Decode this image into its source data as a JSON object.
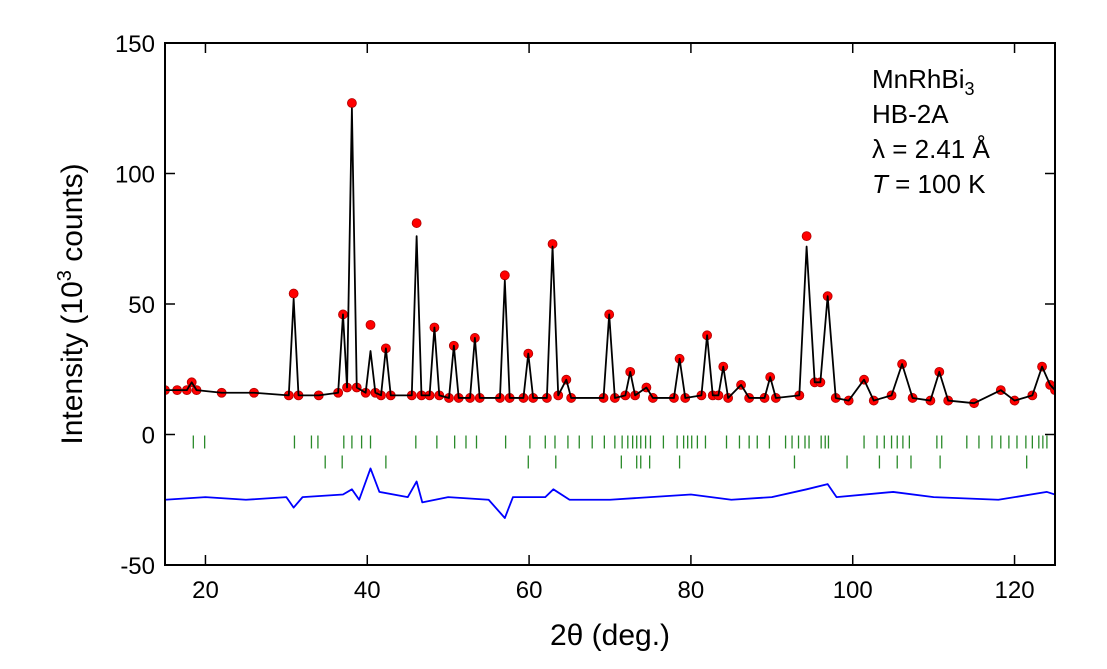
{
  "chart_data": {
    "type": "line",
    "xlabel": "2θ (deg.)",
    "ylabel": [
      "Intensity (10",
      "3",
      " counts)"
    ],
    "annotations": [
      {
        "text": "MnRhBi",
        "sub": "3"
      },
      {
        "text": "HB-2A"
      },
      {
        "text": "λ = 2.41 Å"
      },
      {
        "italic": "T",
        "text": " = 100 K"
      }
    ],
    "xlim": [
      15,
      125
    ],
    "ylim": [
      -50,
      150
    ],
    "xticks": [
      20,
      40,
      60,
      80,
      100,
      120
    ],
    "yticks": [
      -50,
      0,
      50,
      100,
      150
    ],
    "x": [
      15,
      16.5,
      17.7,
      18.3,
      18.9,
      22,
      26,
      30.3,
      30.9,
      31.5,
      34,
      36.4,
      37.0,
      37.5,
      38.1,
      38.7,
      39.8,
      40.4,
      41.0,
      41.7,
      42.3,
      42.9,
      45.5,
      46.1,
      46.7,
      47.7,
      48.3,
      48.9,
      50.1,
      50.7,
      51.3,
      52.7,
      53.3,
      53.9,
      56.4,
      57.0,
      57.6,
      59.3,
      59.9,
      60.5,
      62.2,
      62.9,
      63.6,
      64.6,
      65.2,
      69.2,
      69.9,
      70.6,
      71.9,
      72.5,
      73.1,
      74.5,
      75.3,
      77.9,
      78.6,
      79.3,
      81.3,
      82.0,
      82.7,
      83.4,
      84.0,
      84.6,
      86.2,
      87.2,
      89.1,
      89.8,
      90.5,
      93.4,
      94.3,
      95.3,
      96.0,
      96.9,
      97.9,
      99.5,
      101.4,
      102.6,
      104.8,
      106.1,
      107.4,
      109.6,
      110.7,
      111.8,
      115,
      118.3,
      120,
      122.2,
      123.4,
      124.4,
      125
    ],
    "series": [
      {
        "type": "scatter",
        "color": "#ff0000",
        "values": [
          17,
          17,
          17,
          20,
          17,
          16,
          16,
          15,
          54,
          15,
          15,
          16,
          46,
          18,
          127,
          18,
          16,
          42,
          16,
          15,
          33,
          15,
          15,
          81,
          15,
          15,
          41,
          15,
          14,
          34,
          14,
          14,
          37,
          14,
          14,
          61,
          14,
          14,
          31,
          14,
          14,
          73,
          15,
          21,
          14,
          14,
          46,
          14,
          15,
          24,
          15,
          18,
          14,
          14,
          29,
          14,
          15,
          38,
          15,
          15,
          26,
          14,
          19,
          14,
          14,
          22,
          14,
          15,
          76,
          20,
          20,
          53,
          14,
          13,
          21,
          13,
          15,
          27,
          14,
          13,
          24,
          13,
          12,
          17,
          13,
          15,
          26,
          19,
          17
        ]
      },
      {
        "type": "line",
        "color": "#000000",
        "values": [
          17,
          17,
          17,
          20,
          17,
          16,
          16,
          15,
          52,
          15,
          15,
          16,
          46,
          18,
          125,
          18,
          16,
          32,
          16,
          15,
          33,
          15,
          15,
          76,
          15,
          15,
          41,
          15,
          14,
          34,
          14,
          14,
          37,
          14,
          14,
          59,
          14,
          14,
          31,
          14,
          14,
          72,
          15,
          21,
          14,
          14,
          46,
          14,
          15,
          24,
          15,
          18,
          14,
          14,
          29,
          14,
          15,
          38,
          15,
          15,
          26,
          14,
          19,
          14,
          14,
          22,
          14,
          15,
          72,
          20,
          20,
          53,
          14,
          13,
          21,
          13,
          15,
          27,
          14,
          13,
          24,
          13,
          12,
          17,
          13,
          15,
          26,
          19,
          17
        ]
      },
      {
        "type": "line",
        "color": "#0000ff",
        "x": [
          15,
          20,
          25,
          30,
          30.9,
          32,
          37,
          38.1,
          39,
          40.4,
          41.5,
          45,
          46.1,
          46.8,
          50,
          55,
          57,
          58,
          62,
          63,
          65,
          70,
          75,
          80,
          85,
          90,
          94.3,
          96.9,
          98,
          105,
          110,
          118,
          124,
          125
        ],
        "values": [
          -25,
          -24,
          -25,
          -24,
          -28,
          -24,
          -23,
          -21,
          -25,
          -13,
          -22,
          -24,
          -18,
          -26,
          -24,
          -25,
          -32,
          -24,
          -24,
          -21,
          -25,
          -25,
          -24,
          -23,
          -25,
          -24,
          -21,
          -19,
          -24,
          -22,
          -24,
          -25,
          -22,
          -23
        ]
      },
      {
        "type": "bragg",
        "color": "#2a8a2a",
        "x": [
          18.5,
          19.9,
          31.0,
          33.1,
          33.9,
          37.1,
          38.1,
          39.3,
          40.4,
          46.0,
          48.6,
          50.8,
          52.2,
          53.5,
          57.1,
          60.1,
          62.0,
          63.2,
          64.8,
          66.2,
          67.8,
          69.3,
          70.6,
          71.5,
          72.2,
          72.8,
          73.3,
          73.8,
          74.4,
          75.0,
          76.6,
          78.3,
          79.1,
          79.6,
          80.1,
          80.8,
          81.8,
          84.4,
          86.0,
          87.2,
          88.2,
          89.7,
          91.7,
          92.5,
          93.3,
          94.1,
          94.6,
          96.1,
          96.6,
          97.0,
          101.4,
          103.0,
          103.9,
          104.8,
          105.5,
          106.2,
          107.0,
          110.4,
          111.0,
          114.1,
          115.6,
          117.2,
          118.3,
          119.3,
          120.3,
          121.4,
          122.2,
          123.0,
          123.5,
          124.0
        ]
      },
      {
        "type": "bragg",
        "color": "#2a8a2a",
        "x": [
          34.8,
          36.9,
          42.3,
          59.9,
          63.3,
          71.4,
          73.3,
          73.8,
          74.9,
          78.6,
          92.8,
          99.3,
          103.3,
          105.5,
          107.2,
          110.8,
          121.5
        ]
      }
    ]
  }
}
